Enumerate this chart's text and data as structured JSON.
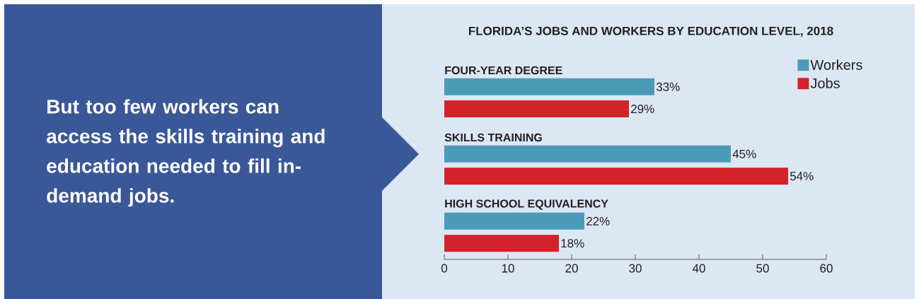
{
  "chart_data": {
    "type": "bar",
    "orientation": "horizontal",
    "title": "FLORIDA’S JOBS AND WORKERS BY EDUCATION LEVEL, 2018",
    "annotations": [
      "But too few workers can access the skills training and education needed to fill in-demand jobs."
    ],
    "categories": [
      "FOUR-YEAR DEGREE",
      "SKILLS TRAINING",
      "HIGH SCHOOL EQUIVALENCY"
    ],
    "series": [
      {
        "name": "Workers",
        "color": "#4a9bb8",
        "values": [
          33,
          45,
          22
        ],
        "value_labels": [
          "33%",
          "45%",
          "22%"
        ]
      },
      {
        "name": "Jobs",
        "color": "#d3222a",
        "values": [
          29,
          54,
          18
        ],
        "value_labels": [
          "29%",
          "54%",
          "18%"
        ]
      }
    ],
    "xlim": [
      0,
      60
    ],
    "xticks": [
      0,
      10,
      20,
      30,
      40,
      50,
      60
    ],
    "legend": "top right"
  }
}
